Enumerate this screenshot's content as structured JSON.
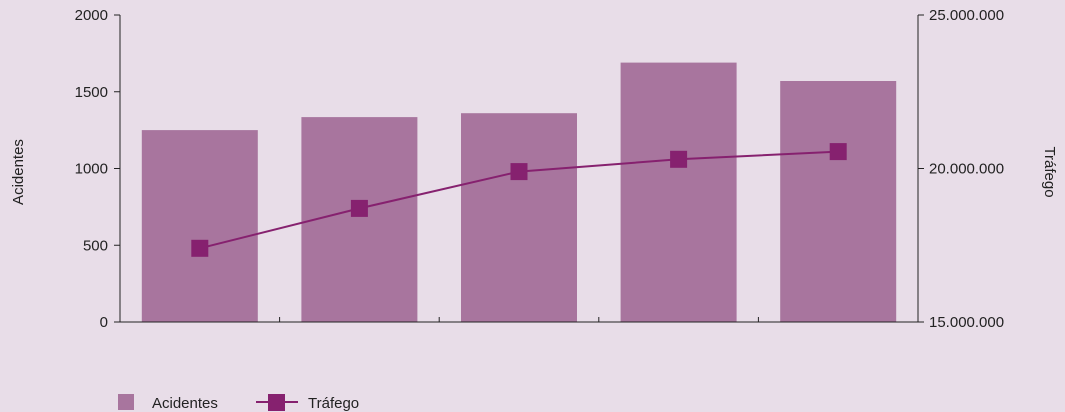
{
  "chart_data": {
    "type": "bar",
    "categories": [
      "",
      "",
      "",
      "",
      ""
    ],
    "series": [
      {
        "name": "Acidentes",
        "type": "bar",
        "axis": "left",
        "values": [
          1250,
          1335,
          1360,
          1690,
          1570
        ]
      },
      {
        "name": "Tráfego",
        "type": "line",
        "axis": "right",
        "values": [
          17400000,
          18700000,
          19900000,
          20300000,
          20550000
        ]
      }
    ],
    "ylabel": "Acidentes",
    "y2label": "Tráfego",
    "ylim": [
      0,
      2000
    ],
    "y2lim": [
      15000000,
      25000000
    ],
    "yticks": [
      {
        "value": 0,
        "label": "0"
      },
      {
        "value": 500,
        "label": "500"
      },
      {
        "value": 1000,
        "label": "1000"
      },
      {
        "value": 1500,
        "label": "1500"
      },
      {
        "value": 2000,
        "label": "2000"
      }
    ],
    "y2ticks": [
      {
        "value": 15000000,
        "label": "15.000.000"
      },
      {
        "value": 20000000,
        "label": "20.000.000"
      },
      {
        "value": 25000000,
        "label": "25.000.000"
      }
    ],
    "legend_position": "bottom-left",
    "grid": false
  },
  "colors": {
    "background": "#e8dde8",
    "bar": "#a8759e",
    "line": "#86216f",
    "axis": "#222222"
  }
}
